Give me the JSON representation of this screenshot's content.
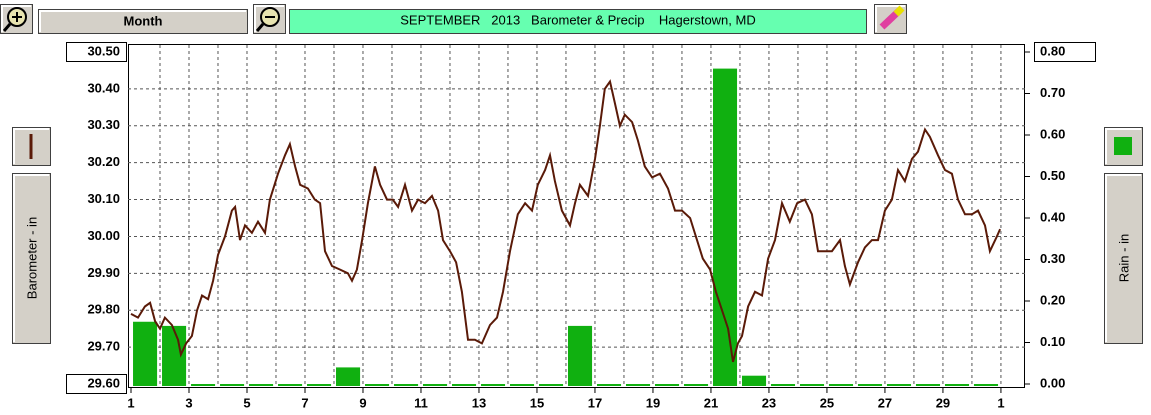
{
  "chart_data": {
    "type": "line",
    "title": "SEPTEMBER   2013   Barometer & Precip    Hagerstown, MD",
    "period_button": "Month",
    "ylabel": "Barometer - in",
    "y2label": "Rain - in",
    "grid": true,
    "xlim": [
      1,
      31.83
    ],
    "xticks": [
      1,
      3,
      5,
      7,
      9,
      11,
      13,
      15,
      17,
      19,
      21,
      23,
      25,
      27,
      29,
      {
        "value": 31,
        "label": "1"
      }
    ],
    "ylim": [
      29.6,
      30.5
    ],
    "yticks": [
      {
        "value": 29.6,
        "label": "29.60"
      },
      {
        "value": 29.7,
        "label": "29.70"
      },
      {
        "value": 29.8,
        "label": "29.80"
      },
      {
        "value": 29.9,
        "label": "29.90"
      },
      {
        "value": 30.0,
        "label": "30.00"
      },
      {
        "value": 30.1,
        "label": "30.10"
      },
      {
        "value": 30.2,
        "label": "30.20"
      },
      {
        "value": 30.3,
        "label": "30.30"
      },
      {
        "value": 30.4,
        "label": "30.40"
      },
      {
        "value": 30.5,
        "label": "30.50"
      }
    ],
    "y2lim": [
      0,
      0.8
    ],
    "y2ticks": [
      {
        "value": 0,
        "label": "0.00"
      },
      {
        "value": 0.1,
        "label": "0.10"
      },
      {
        "value": 0.2,
        "label": "0.20"
      },
      {
        "value": 0.3,
        "label": "0.30"
      },
      {
        "value": 0.4,
        "label": "0.40"
      },
      {
        "value": 0.5,
        "label": "0.50"
      },
      {
        "value": 0.6,
        "label": "0.60"
      },
      {
        "value": 0.7,
        "label": "0.70"
      },
      {
        "value": 0.8,
        "label": "0.80"
      }
    ],
    "series": [
      {
        "type": "line",
        "color": "#5a1a08",
        "x": [
          1.0,
          1.24,
          1.48,
          1.66,
          1.83,
          2.0,
          2.17,
          2.41,
          2.62,
          2.72,
          2.9,
          3.1,
          3.28,
          3.45,
          3.66,
          3.83,
          4.0,
          4.24,
          4.48,
          4.59,
          4.76,
          4.93,
          5.17,
          5.38,
          5.62,
          5.79,
          6.07,
          6.31,
          6.48,
          6.66,
          6.83,
          7.1,
          7.34,
          7.52,
          7.69,
          7.93,
          8.21,
          8.48,
          8.62,
          8.79,
          8.97,
          9.17,
          9.41,
          9.59,
          9.83,
          10.03,
          10.21,
          10.45,
          10.69,
          10.9,
          11.14,
          11.38,
          11.59,
          11.76,
          12.0,
          12.21,
          12.41,
          12.62,
          12.86,
          13.1,
          13.38,
          13.62,
          13.83,
          14.07,
          14.34,
          14.59,
          14.83,
          15.03,
          15.28,
          15.45,
          15.62,
          15.86,
          16.14,
          16.31,
          16.48,
          16.76,
          17.0,
          17.17,
          17.34,
          17.52,
          17.69,
          17.86,
          18.03,
          18.28,
          18.48,
          18.72,
          18.97,
          19.24,
          19.52,
          19.76,
          20.0,
          20.28,
          20.52,
          20.72,
          20.97,
          21.17,
          21.38,
          21.59,
          21.76,
          21.93,
          22.07,
          22.28,
          22.52,
          22.76,
          22.97,
          23.21,
          23.45,
          23.72,
          23.97,
          24.24,
          24.48,
          24.69,
          24.93,
          25.17,
          25.45,
          25.62,
          25.79,
          26.07,
          26.31,
          26.55,
          26.76,
          27.0,
          27.24,
          27.45,
          27.69,
          27.93,
          28.14,
          28.38,
          28.55,
          28.83,
          29.07,
          29.31,
          29.52,
          29.76,
          30.0,
          30.21,
          30.45,
          30.62,
          30.86,
          30.97
        ],
        "values": [
          29.79,
          29.78,
          29.81,
          29.82,
          29.77,
          29.75,
          29.78,
          29.76,
          29.72,
          29.68,
          29.71,
          29.73,
          29.8,
          29.84,
          29.83,
          29.88,
          29.95,
          30.0,
          30.07,
          30.08,
          29.99,
          30.03,
          30.01,
          30.04,
          30.01,
          30.1,
          30.17,
          30.22,
          30.25,
          30.19,
          30.14,
          30.13,
          30.1,
          30.09,
          29.96,
          29.92,
          29.91,
          29.9,
          29.88,
          29.91,
          29.99,
          30.09,
          30.19,
          30.14,
          30.1,
          30.1,
          30.08,
          30.14,
          30.07,
          30.1,
          30.09,
          30.11,
          30.07,
          29.99,
          29.96,
          29.93,
          29.85,
          29.72,
          29.72,
          29.71,
          29.76,
          29.78,
          29.85,
          29.96,
          30.06,
          30.09,
          30.07,
          30.14,
          30.18,
          30.22,
          30.15,
          30.07,
          30.03,
          30.09,
          30.14,
          30.11,
          30.21,
          30.3,
          30.4,
          30.42,
          30.36,
          30.3,
          30.33,
          30.31,
          30.26,
          30.19,
          30.16,
          30.17,
          30.13,
          30.07,
          30.07,
          30.05,
          29.99,
          29.94,
          29.91,
          29.85,
          29.8,
          29.75,
          29.66,
          29.71,
          29.73,
          29.81,
          29.85,
          29.84,
          29.94,
          29.99,
          30.09,
          30.04,
          30.09,
          30.1,
          30.06,
          29.96,
          29.96,
          29.96,
          29.99,
          29.92,
          29.87,
          29.93,
          29.97,
          29.99,
          29.99,
          30.07,
          30.1,
          30.18,
          30.15,
          30.21,
          30.23,
          30.29,
          30.27,
          30.22,
          30.18,
          30.17,
          30.1,
          30.06,
          30.06,
          30.07,
          30.03,
          29.96,
          30.0,
          30.02
        ]
      },
      {
        "type": "bar",
        "axis": "y2",
        "color": "#10b010",
        "x": [
          1,
          2,
          3,
          4,
          5,
          6,
          7,
          8,
          9,
          10,
          11,
          12,
          13,
          14,
          15,
          16,
          17,
          18,
          19,
          20,
          21,
          22,
          23,
          24,
          25,
          26,
          27,
          28,
          29,
          30
        ],
        "values": [
          0.15,
          0.14,
          0,
          0,
          0,
          0,
          0,
          0.04,
          0,
          0,
          0,
          0,
          0,
          0,
          0,
          0.14,
          0,
          0,
          0,
          0,
          0.76,
          0.02,
          0,
          0,
          0,
          0,
          0,
          0,
          0,
          0
        ]
      }
    ]
  }
}
